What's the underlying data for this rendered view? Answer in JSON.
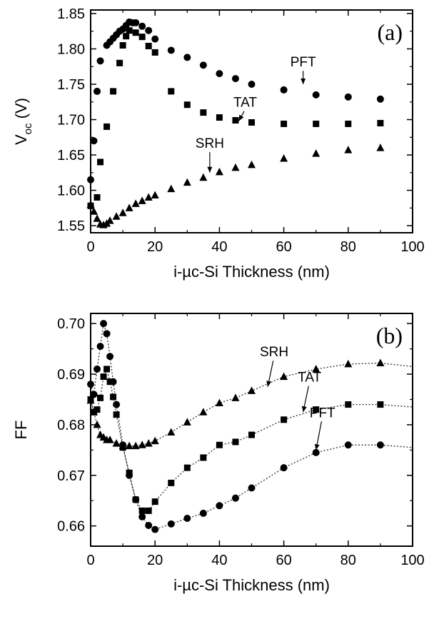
{
  "chart_data": [
    {
      "type": "scatter",
      "panel_label": "(a)",
      "xlabel": "i-µc-Si Thickness (nm)",
      "ylabel": "V",
      "ylabel_sub": "oc",
      "ylabel_unit": " (V)",
      "xlim": [
        0,
        100
      ],
      "ylim": [
        1.54,
        1.855
      ],
      "xticks": [
        0,
        20,
        40,
        60,
        80,
        100
      ],
      "yticks": [
        1.55,
        1.6,
        1.65,
        1.7,
        1.75,
        1.8,
        1.85
      ],
      "ytick_labels": [
        "1.55",
        "1.60",
        "1.65",
        "1.70",
        "1.75",
        "1.80",
        "1.85"
      ],
      "xtick_labels": [
        "0",
        "20",
        "40",
        "60",
        "80",
        "100"
      ],
      "grid": false,
      "series": [
        {
          "label": "PFT",
          "marker": "circle",
          "points": [
            [
              0,
              1.615
            ],
            [
              1,
              1.67
            ],
            [
              2,
              1.74
            ],
            [
              3,
              1.783
            ],
            [
              5,
              1.805
            ],
            [
              6,
              1.81
            ],
            [
              7,
              1.815
            ],
            [
              8,
              1.82
            ],
            [
              9,
              1.825
            ],
            [
              10,
              1.828
            ],
            [
              11,
              1.833
            ],
            [
              12,
              1.838
            ],
            [
              13,
              1.837
            ],
            [
              14,
              1.837
            ],
            [
              16,
              1.832
            ],
            [
              18,
              1.826
            ],
            [
              20,
              1.814
            ],
            [
              25,
              1.798
            ],
            [
              30,
              1.788
            ],
            [
              35,
              1.777
            ],
            [
              40,
              1.765
            ],
            [
              45,
              1.758
            ],
            [
              50,
              1.75
            ],
            [
              60,
              1.742
            ],
            [
              70,
              1.735
            ],
            [
              80,
              1.732
            ],
            [
              90,
              1.729
            ]
          ]
        },
        {
          "label": "TAT",
          "marker": "square",
          "points": [
            [
              0,
              1.578
            ],
            [
              2,
              1.59
            ],
            [
              3,
              1.64
            ],
            [
              5,
              1.69
            ],
            [
              7,
              1.74
            ],
            [
              9,
              1.78
            ],
            [
              10,
              1.805
            ],
            [
              11,
              1.818
            ],
            [
              12,
              1.826
            ],
            [
              14,
              1.823
            ],
            [
              16,
              1.817
            ],
            [
              18,
              1.804
            ],
            [
              20,
              1.795
            ],
            [
              25,
              1.74
            ],
            [
              30,
              1.721
            ],
            [
              35,
              1.71
            ],
            [
              40,
              1.703
            ],
            [
              45,
              1.699
            ],
            [
              50,
              1.696
            ],
            [
              60,
              1.694
            ],
            [
              70,
              1.694
            ],
            [
              80,
              1.694
            ],
            [
              90,
              1.695
            ]
          ]
        },
        {
          "label": "SRH",
          "marker": "triangle",
          "points": [
            [
              0,
              1.58
            ],
            [
              1,
              1.57
            ],
            [
              2,
              1.56
            ],
            [
              3,
              1.552
            ],
            [
              4,
              1.551
            ],
            [
              5,
              1.553
            ],
            [
              6,
              1.557
            ],
            [
              8,
              1.563
            ],
            [
              10,
              1.568
            ],
            [
              12,
              1.575
            ],
            [
              14,
              1.581
            ],
            [
              16,
              1.585
            ],
            [
              18,
              1.59
            ],
            [
              20,
              1.593
            ],
            [
              25,
              1.602
            ],
            [
              30,
              1.611
            ],
            [
              35,
              1.618
            ],
            [
              40,
              1.626
            ],
            [
              45,
              1.632
            ],
            [
              50,
              1.636
            ],
            [
              60,
              1.645
            ],
            [
              70,
              1.652
            ],
            [
              80,
              1.657
            ],
            [
              90,
              1.66
            ]
          ]
        }
      ],
      "annotations": [
        {
          "text": "PFT",
          "x": 66,
          "y": 1.775,
          "arrow_to": [
            66,
            1.75
          ]
        },
        {
          "text": "TAT",
          "x": 48,
          "y": 1.718,
          "arrow_to": [
            46,
            1.698
          ]
        },
        {
          "text": "SRH",
          "x": 37,
          "y": 1.66,
          "arrow_to": [
            37,
            1.625
          ]
        }
      ]
    },
    {
      "type": "line",
      "panel_label": "(b)",
      "xlabel": "i-µc-Si Thickness (nm)",
      "ylabel": "FF",
      "xlim": [
        0,
        100
      ],
      "ylim": [
        0.656,
        0.702
      ],
      "xticks": [
        0,
        20,
        40,
        60,
        80,
        100
      ],
      "yticks": [
        0.66,
        0.67,
        0.68,
        0.69,
        0.7
      ],
      "ytick_labels": [
        "0.66",
        "0.67",
        "0.68",
        "0.69",
        "0.70"
      ],
      "xtick_labels": [
        "0",
        "20",
        "40",
        "60",
        "80",
        "100"
      ],
      "grid": false,
      "series": [
        {
          "label": "PFT",
          "marker": "circle",
          "points": [
            [
              0,
              0.688
            ],
            [
              1,
              0.686
            ],
            [
              2,
              0.691
            ],
            [
              3,
              0.6955
            ],
            [
              4,
              0.7
            ],
            [
              5,
              0.698
            ],
            [
              6,
              0.6935
            ],
            [
              7,
              0.6885
            ],
            [
              8,
              0.684
            ],
            [
              10,
              0.676
            ],
            [
              12,
              0.67
            ],
            [
              14,
              0.6652
            ],
            [
              16,
              0.6618
            ],
            [
              18,
              0.6601
            ],
            [
              20,
              0.6593
            ],
            [
              25,
              0.6604
            ],
            [
              30,
              0.6615
            ],
            [
              35,
              0.6625
            ],
            [
              40,
              0.664
            ],
            [
              45,
              0.6655
            ],
            [
              50,
              0.6675
            ],
            [
              60,
              0.6715
            ],
            [
              70,
              0.6745
            ],
            [
              80,
              0.676
            ],
            [
              90,
              0.676
            ]
          ],
          "curve_end": [
            100,
            0.6755
          ]
        },
        {
          "label": "TAT",
          "marker": "square",
          "points": [
            [
              0,
              0.685
            ],
            [
              1,
              0.6825
            ],
            [
              2,
              0.683
            ],
            [
              3,
              0.6853
            ],
            [
              4,
              0.6895
            ],
            [
              5,
              0.691
            ],
            [
              6,
              0.6885
            ],
            [
              7,
              0.6855
            ],
            [
              8,
              0.682
            ],
            [
              10,
              0.6755
            ],
            [
              12,
              0.6705
            ],
            [
              14,
              0.6652
            ],
            [
              16,
              0.663
            ],
            [
              18,
              0.663
            ],
            [
              20,
              0.6648
            ],
            [
              25,
              0.6685
            ],
            [
              30,
              0.6715
            ],
            [
              35,
              0.6735
            ],
            [
              40,
              0.676
            ],
            [
              45,
              0.6766
            ],
            [
              50,
              0.678
            ],
            [
              60,
              0.681
            ],
            [
              70,
              0.683
            ],
            [
              80,
              0.684
            ],
            [
              90,
              0.684
            ]
          ],
          "curve_end": [
            100,
            0.6835
          ]
        },
        {
          "label": "SRH",
          "marker": "triangle",
          "points": [
            [
              0,
              0.6848
            ],
            [
              1,
              0.6825
            ],
            [
              2,
              0.68
            ],
            [
              3,
              0.678
            ],
            [
              4,
              0.6775
            ],
            [
              5,
              0.677
            ],
            [
              6,
              0.677
            ],
            [
              8,
              0.6763
            ],
            [
              10,
              0.6758
            ],
            [
              12,
              0.6758
            ],
            [
              14,
              0.6758
            ],
            [
              16,
              0.676
            ],
            [
              18,
              0.6763
            ],
            [
              20,
              0.6768
            ],
            [
              25,
              0.6785
            ],
            [
              30,
              0.6805
            ],
            [
              35,
              0.6825
            ],
            [
              40,
              0.6843
            ],
            [
              45,
              0.6853
            ],
            [
              50,
              0.6867
            ],
            [
              60,
              0.6895
            ],
            [
              70,
              0.691
            ],
            [
              80,
              0.692
            ],
            [
              90,
              0.6922
            ]
          ],
          "curve_end": [
            100,
            0.6915
          ]
        }
      ],
      "annotations": [
        {
          "text": "SRH",
          "x": 57,
          "y": 0.6935,
          "arrow_to": [
            55,
            0.6875
          ]
        },
        {
          "text": "TAT",
          "x": 68,
          "y": 0.6885,
          "arrow_to": [
            66,
            0.6825
          ]
        },
        {
          "text": "PFT",
          "x": 72,
          "y": 0.6815,
          "arrow_to": [
            70,
            0.675
          ]
        }
      ]
    }
  ]
}
